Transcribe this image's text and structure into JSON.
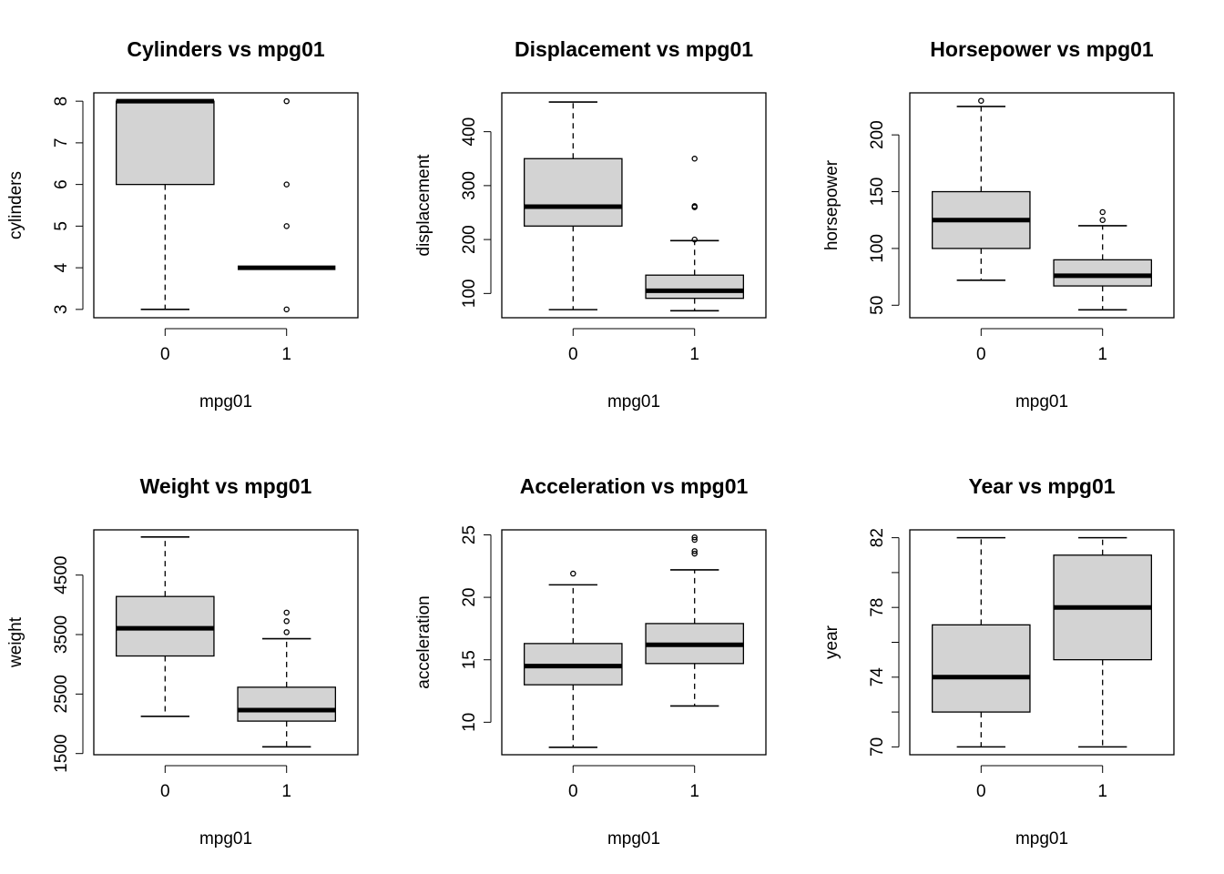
{
  "chart_data": [
    {
      "type": "boxplot",
      "title": "Cylinders vs mpg01",
      "xlabel": "mpg01",
      "ylabel": "cylinders",
      "categories": [
        "0",
        "1"
      ],
      "ylim": [
        2.8,
        8.2
      ],
      "yticks": [
        3,
        4,
        5,
        6,
        7,
        8
      ],
      "boxes": [
        {
          "category": "0",
          "min": 3,
          "q1": 6,
          "median": 8,
          "q3": 8,
          "max": 8,
          "outliers": []
        },
        {
          "category": "1",
          "min": 4,
          "q1": 4,
          "median": 4,
          "q3": 4,
          "max": 4,
          "outliers": [
            3,
            5,
            6,
            8
          ]
        }
      ]
    },
    {
      "type": "boxplot",
      "title": "Displacement vs mpg01",
      "xlabel": "mpg01",
      "ylabel": "displacement",
      "categories": [
        "0",
        "1"
      ],
      "ylim": [
        55,
        472
      ],
      "yticks": [
        100,
        200,
        300,
        400
      ],
      "boxes": [
        {
          "category": "0",
          "min": 70,
          "q1": 225,
          "median": 261,
          "q3": 350,
          "max": 455,
          "outliers": []
        },
        {
          "category": "1",
          "min": 68,
          "q1": 91,
          "median": 105,
          "q3": 134,
          "max": 198,
          "outliers": [
            200,
            260,
            262,
            350
          ]
        }
      ]
    },
    {
      "type": "boxplot",
      "title": "Horsepower vs mpg01",
      "xlabel": "mpg01",
      "ylabel": "horsepower",
      "categories": [
        "0",
        "1"
      ],
      "ylim": [
        39,
        237
      ],
      "yticks": [
        50,
        100,
        150,
        200
      ],
      "boxes": [
        {
          "category": "0",
          "min": 72,
          "q1": 100,
          "median": 125,
          "q3": 150,
          "max": 225,
          "outliers": [
            230
          ]
        },
        {
          "category": "1",
          "min": 46,
          "q1": 67,
          "median": 76,
          "q3": 90,
          "max": 120,
          "outliers": [
            125,
            132
          ]
        }
      ]
    },
    {
      "type": "boxplot",
      "title": "Weight vs mpg01",
      "xlabel": "mpg01",
      "ylabel": "weight",
      "categories": [
        "0",
        "1"
      ],
      "ylim": [
        1480,
        5260
      ],
      "yticks": [
        1500,
        2500,
        3500,
        4500
      ],
      "boxes": [
        {
          "category": "0",
          "min": 2125,
          "q1": 3140,
          "median": 3605,
          "q3": 4140,
          "max": 5140,
          "outliers": []
        },
        {
          "category": "1",
          "min": 1613,
          "q1": 2045,
          "median": 2230,
          "q3": 2615,
          "max": 3430,
          "outliers": [
            3540,
            3725,
            3870
          ]
        }
      ]
    },
    {
      "type": "boxplot",
      "title": "Acceleration vs mpg01",
      "xlabel": "mpg01",
      "ylabel": "acceleration",
      "categories": [
        "0",
        "1"
      ],
      "ylim": [
        7.4,
        25.4
      ],
      "yticks": [
        10,
        15,
        20,
        25
      ],
      "boxes": [
        {
          "category": "0",
          "min": 8.0,
          "q1": 13.0,
          "median": 14.5,
          "q3": 16.3,
          "max": 21.0,
          "outliers": [
            21.9
          ]
        },
        {
          "category": "1",
          "min": 11.3,
          "q1": 14.7,
          "median": 16.2,
          "q3": 17.9,
          "max": 22.2,
          "outliers": [
            23.5,
            23.7,
            24.6,
            24.8
          ]
        }
      ]
    },
    {
      "type": "boxplot",
      "title": "Year vs mpg01",
      "xlabel": "mpg01",
      "ylabel": "year",
      "categories": [
        "0",
        "1"
      ],
      "ylim": [
        69.55,
        82.45
      ],
      "yticks": [
        70,
        74,
        78,
        82
      ],
      "minor_yticks": [
        72,
        76,
        80
      ],
      "boxes": [
        {
          "category": "0",
          "min": 70,
          "q1": 72,
          "median": 74,
          "q3": 77,
          "max": 82,
          "outliers": []
        },
        {
          "category": "1",
          "min": 70,
          "q1": 75,
          "median": 78,
          "q3": 81,
          "max": 82,
          "outliers": []
        }
      ]
    }
  ],
  "style": {
    "box_fill": "#d3d3d3",
    "stroke": "#000000",
    "background": "#ffffff"
  }
}
